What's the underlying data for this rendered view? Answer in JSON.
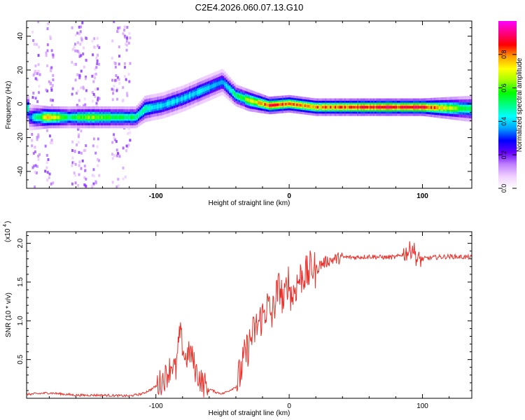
{
  "title": "C2E4.2026.060.07.13.G10",
  "colors": {
    "signal": "#ff0000",
    "snr_line": "#e8302a",
    "frame": "#000000",
    "background": "#ffffff"
  },
  "chart_data": [
    {
      "type": "heatmap",
      "name": "spectrogram",
      "xlabel": "Height of straight line (km)",
      "ylabel": "Frequency (Hz)",
      "xlim": [
        -197,
        137
      ],
      "ylim": [
        -50,
        49
      ],
      "x_ticks": [
        -100,
        0,
        100
      ],
      "y_ticks": [
        40,
        20,
        0,
        -20,
        -40
      ],
      "colorbar": {
        "label": "Normalized spectral amplitude",
        "range": [
          0,
          1
        ],
        "ticks": [
          0.0,
          0.2,
          0.4,
          0.6,
          0.8
        ],
        "colormap": [
          "#ffffff",
          "#f0d0ff",
          "#c080ff",
          "#6600ff",
          "#0000ff",
          "#00a0ff",
          "#00ffff",
          "#00ff80",
          "#00ff00",
          "#a0ff00",
          "#ffff00",
          "#ffa000",
          "#ff0000",
          "#ff0080",
          "#ff00ff"
        ]
      },
      "ridge": [
        {
          "x": -195,
          "freq": -8,
          "amp": 0.35,
          "width": 3
        },
        {
          "x": -180,
          "freq": -8,
          "amp": 0.85,
          "width": 2.5
        },
        {
          "x": -165,
          "freq": -8,
          "amp": 0.55,
          "width": 2.5
        },
        {
          "x": -150,
          "freq": -8,
          "amp": 0.7,
          "width": 2.5
        },
        {
          "x": -135,
          "freq": -8,
          "amp": 0.6,
          "width": 2.5
        },
        {
          "x": -115,
          "freq": -8,
          "amp": 0.55,
          "width": 2.5
        },
        {
          "x": -108,
          "freq": -3,
          "amp": 0.5,
          "width": 3
        },
        {
          "x": -95,
          "freq": -1,
          "amp": 0.45,
          "width": 3
        },
        {
          "x": -80,
          "freq": 3,
          "amp": 0.45,
          "width": 3
        },
        {
          "x": -65,
          "freq": 8,
          "amp": 0.45,
          "width": 3
        },
        {
          "x": -50,
          "freq": 13,
          "amp": 0.4,
          "width": 3
        },
        {
          "x": -40,
          "freq": 5,
          "amp": 0.55,
          "width": 2.5
        },
        {
          "x": -30,
          "freq": 2,
          "amp": 0.7,
          "width": 2.5
        },
        {
          "x": -15,
          "freq": -1,
          "amp": 0.9,
          "width": 2
        },
        {
          "x": 0,
          "freq": 0,
          "amp": 0.9,
          "width": 2
        },
        {
          "x": 20,
          "freq": -2,
          "amp": 0.85,
          "width": 2
        },
        {
          "x": 60,
          "freq": -2,
          "amp": 0.95,
          "width": 2
        },
        {
          "x": 100,
          "freq": -2,
          "amp": 0.95,
          "width": 2
        },
        {
          "x": 137,
          "freq": -3,
          "amp": 0.55,
          "width": 3
        }
      ],
      "noise_columns": [
        -190,
        -180,
        -160,
        -155,
        -145,
        -130,
        -122
      ]
    },
    {
      "type": "line",
      "name": "snr",
      "xlabel": "Height of straight line (km)",
      "ylabel": "SNR (10 * v/v)",
      "y_multiplier": "(x10",
      "y_multiplier_exp": "4",
      "xlim": [
        -197,
        137
      ],
      "ylim": [
        0,
        2.15
      ],
      "x_ticks": [
        -100,
        0,
        100
      ],
      "y_ticks": [
        0.5,
        1.0,
        1.5,
        2.0
      ],
      "y_tick_labels": [
        "0.5",
        "1.0",
        "1.5",
        "2.0"
      ],
      "series": [
        {
          "name": "SNR",
          "x": [
            -197,
            -180,
            -160,
            -140,
            -120,
            -110,
            -103,
            -97,
            -92,
            -88,
            -85,
            -82,
            -78,
            -74,
            -70,
            -65,
            -60,
            -55,
            -50,
            -45,
            -40,
            -37,
            -34,
            -31,
            -28,
            -25,
            -22,
            -19,
            -16,
            -13,
            -10,
            -7,
            -4,
            -1,
            2,
            5,
            8,
            11,
            14,
            17,
            20,
            23,
            26,
            30,
            35,
            40,
            50,
            60,
            70,
            80,
            85,
            90,
            93,
            96,
            100,
            110,
            120,
            137
          ],
          "y": [
            0.05,
            0.07,
            0.04,
            0.04,
            0.03,
            0.06,
            0.12,
            0.2,
            0.3,
            0.45,
            0.35,
            0.85,
            0.5,
            0.6,
            0.35,
            0.2,
            0.12,
            0.08,
            0.06,
            0.1,
            0.15,
            0.3,
            0.5,
            0.65,
            0.8,
            0.9,
            1.0,
            1.1,
            1.2,
            1.05,
            1.3,
            1.45,
            1.2,
            1.55,
            1.3,
            1.45,
            1.55,
            1.6,
            1.6,
            1.7,
            1.65,
            1.72,
            1.75,
            1.78,
            1.8,
            1.82,
            1.82,
            1.83,
            1.82,
            1.82,
            1.86,
            1.9,
            1.95,
            1.78,
            1.8,
            1.82,
            1.83,
            1.82
          ]
        }
      ]
    }
  ]
}
